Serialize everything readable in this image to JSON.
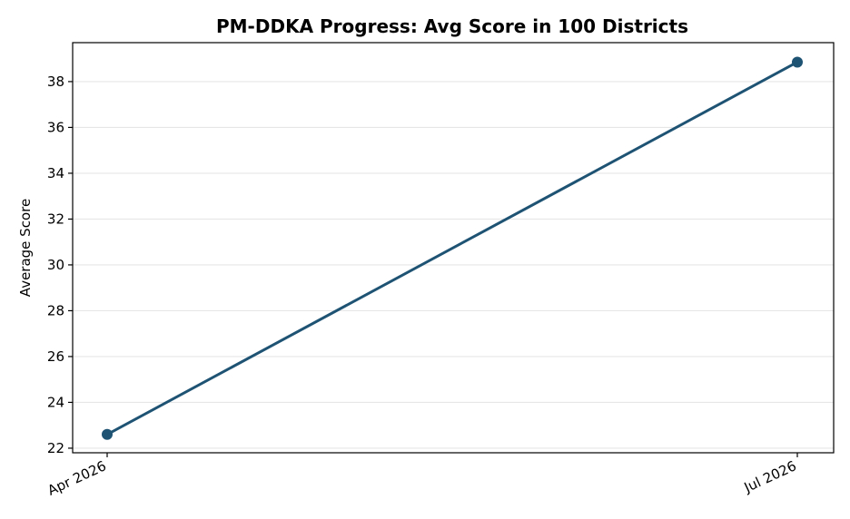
{
  "chart_data": {
    "type": "line",
    "title": "PM-DDKA Progress: Avg Score in 100 Districts",
    "xlabel": "",
    "ylabel": "Average Score",
    "categories": [
      "Apr 2026",
      "Jul 2026"
    ],
    "series": [
      {
        "values": [
          22.6,
          38.85
        ]
      }
    ],
    "yticks": [
      22,
      24,
      26,
      28,
      30,
      32,
      34,
      36,
      38
    ],
    "ylim": [
      21.8,
      39.7
    ],
    "grid": "horizontal",
    "colors": {
      "line": "#1f5374",
      "grid": "#e6e6e6",
      "axis": "#000000"
    }
  }
}
